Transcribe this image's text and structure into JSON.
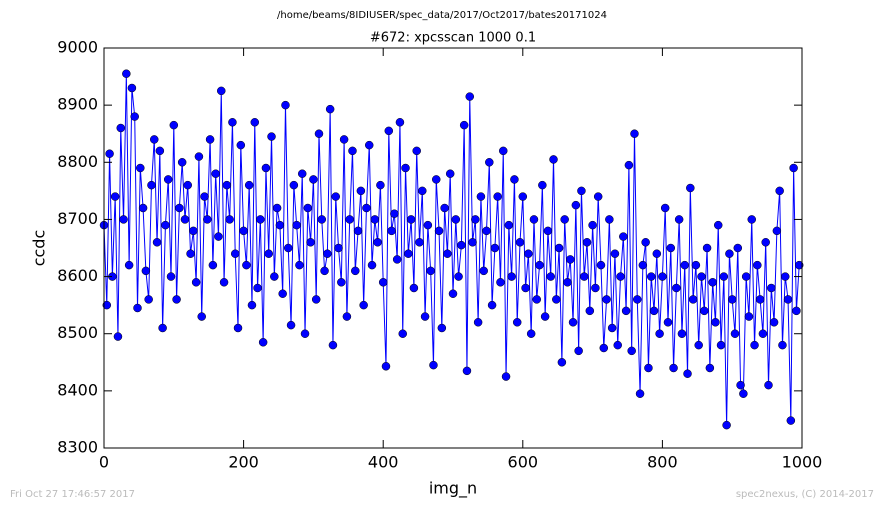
{
  "chart_data": {
    "type": "line",
    "header": "/home/beams/8IDIUSER/spec_data/2017/Oct2017/bates20171024",
    "title": "#672: xpcsscan 1000 0.1",
    "x_label": "img_n",
    "y_label": "ccdc",
    "footer_left": "Fri Oct 27 17:46:57 2017",
    "footer_right": "spec2nexus, (C) 2014-2017",
    "color": "#0000ff",
    "xlim": [
      0,
      1000
    ],
    "xticks": [
      0,
      200,
      400,
      600,
      800,
      1000
    ],
    "ylim": [
      8300,
      9000
    ],
    "yticks": [
      8300,
      8400,
      8500,
      8600,
      8700,
      8800,
      8900,
      9000
    ],
    "x": [
      0,
      4,
      8,
      12,
      16,
      20,
      24,
      28,
      32,
      36,
      40,
      44,
      48,
      52,
      56,
      60,
      64,
      68,
      72,
      76,
      80,
      84,
      88,
      92,
      96,
      100,
      104,
      108,
      112,
      116,
      120,
      124,
      128,
      132,
      136,
      140,
      144,
      148,
      152,
      156,
      160,
      164,
      168,
      172,
      176,
      180,
      184,
      188,
      192,
      196,
      200,
      204,
      208,
      212,
      216,
      220,
      224,
      228,
      232,
      236,
      240,
      244,
      248,
      252,
      256,
      260,
      264,
      268,
      272,
      276,
      280,
      284,
      288,
      292,
      296,
      300,
      304,
      308,
      312,
      316,
      320,
      324,
      328,
      332,
      336,
      340,
      344,
      348,
      352,
      356,
      360,
      364,
      368,
      372,
      376,
      380,
      384,
      388,
      392,
      396,
      400,
      404,
      408,
      412,
      416,
      420,
      424,
      428,
      432,
      436,
      440,
      444,
      448,
      452,
      456,
      460,
      464,
      468,
      472,
      476,
      480,
      484,
      488,
      492,
      496,
      500,
      504,
      508,
      512,
      516,
      520,
      524,
      528,
      532,
      536,
      540,
      544,
      548,
      552,
      556,
      560,
      564,
      568,
      572,
      576,
      580,
      584,
      588,
      592,
      596,
      600,
      604,
      608,
      612,
      616,
      620,
      624,
      628,
      632,
      636,
      640,
      644,
      648,
      652,
      656,
      660,
      664,
      668,
      672,
      676,
      680,
      684,
      688,
      692,
      696,
      700,
      704,
      708,
      712,
      716,
      720,
      724,
      728,
      732,
      736,
      740,
      744,
      748,
      752,
      756,
      760,
      764,
      768,
      772,
      776,
      780,
      784,
      788,
      792,
      796,
      800,
      804,
      808,
      812,
      816,
      820,
      824,
      828,
      832,
      836,
      840,
      844,
      848,
      852,
      856,
      860,
      864,
      868,
      872,
      876,
      880,
      884,
      888,
      892,
      896,
      900,
      904,
      908,
      912,
      916,
      920,
      924,
      928,
      932,
      936,
      940,
      944,
      948,
      952,
      956,
      960,
      964,
      968,
      972,
      976,
      980,
      984,
      988,
      992,
      996
    ],
    "values": [
      8690,
      8550,
      8815,
      8600,
      8740,
      8495,
      8860,
      8700,
      8955,
      8620,
      8930,
      8880,
      8545,
      8790,
      8720,
      8610,
      8560,
      8760,
      8840,
      8660,
      8820,
      8510,
      8690,
      8770,
      8600,
      8865,
      8560,
      8720,
      8800,
      8700,
      8760,
      8640,
      8680,
      8590,
      8810,
      8530,
      8740,
      8700,
      8840,
      8620,
      8780,
      8670,
      8925,
      8590,
      8760,
      8700,
      8870,
      8640,
      8510,
      8830,
      8680,
      8620,
      8760,
      8550,
      8870,
      8580,
      8700,
      8485,
      8790,
      8640,
      8845,
      8600,
      8720,
      8690,
      8570,
      8900,
      8650,
      8515,
      8760,
      8690,
      8620,
      8780,
      8500,
      8720,
      8660,
      8770,
      8560,
      8850,
      8700,
      8610,
      8640,
      8893,
      8480,
      8740,
      8650,
      8590,
      8840,
      8530,
      8700,
      8820,
      8610,
      8680,
      8750,
      8550,
      8720,
      8830,
      8620,
      8700,
      8660,
      8760,
      8590,
      8443,
      8855,
      8680,
      8710,
      8630,
      8870,
      8500,
      8790,
      8640,
      8700,
      8580,
      8820,
      8660,
      8750,
      8530,
      8690,
      8610,
      8445,
      8770,
      8680,
      8510,
      8720,
      8640,
      8780,
      8570,
      8700,
      8600,
      8655,
      8865,
      8435,
      8915,
      8660,
      8700,
      8520,
      8740,
      8610,
      8680,
      8800,
      8550,
      8650,
      8740,
      8590,
      8820,
      8425,
      8690,
      8600,
      8770,
      8520,
      8660,
      8740,
      8580,
      8640,
      8500,
      8700,
      8560,
      8620,
      8760,
      8530,
      8680,
      8600,
      8805,
      8560,
      8650,
      8450,
      8700,
      8590,
      8630,
      8520,
      8725,
      8470,
      8750,
      8600,
      8660,
      8540,
      8690,
      8580,
      8740,
      8620,
      8475,
      8560,
      8700,
      8510,
      8640,
      8480,
      8600,
      8670,
      8540,
      8795,
      8470,
      8850,
      8560,
      8395,
      8620,
      8660,
      8440,
      8600,
      8540,
      8640,
      8500,
      8600,
      8720,
      8520,
      8650,
      8440,
      8580,
      8700,
      8500,
      8620,
      8430,
      8755,
      8560,
      8620,
      8480,
      8600,
      8540,
      8650,
      8440,
      8590,
      8520,
      8690,
      8480,
      8600,
      8340,
      8640,
      8560,
      8500,
      8650,
      8410,
      8395,
      8600,
      8530,
      8700,
      8480,
      8620,
      8560,
      8500,
      8660,
      8410,
      8580,
      8520,
      8680,
      8750,
      8480,
      8600,
      8560,
      8348,
      8790,
      8540,
      8620
    ]
  }
}
